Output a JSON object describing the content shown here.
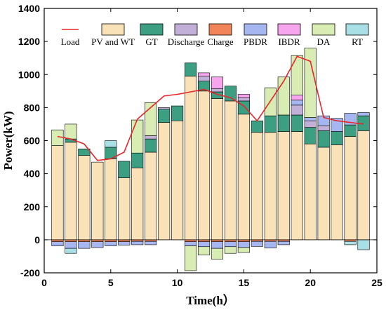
{
  "chart_data": {
    "type": "bar",
    "subtype": "stacked",
    "xlabel": "Time(h）",
    "ylabel": "Power(kW)",
    "xlim": [
      0,
      25
    ],
    "ylim": [
      -200,
      1400
    ],
    "xticks": [
      0,
      5,
      10,
      15,
      20,
      25
    ],
    "yticks": [
      -200,
      0,
      200,
      400,
      600,
      800,
      1000,
      1200,
      1400
    ],
    "x": [
      1,
      2,
      3,
      4,
      5,
      6,
      7,
      8,
      9,
      10,
      11,
      12,
      13,
      14,
      15,
      16,
      17,
      18,
      19,
      20,
      21,
      22,
      23,
      24
    ],
    "legend_position": "top",
    "colors": {
      "pv_wt": "#f9e2b8",
      "gt": "#3c9f82",
      "discharge": "#c3b0d8",
      "charge": "#f2845a",
      "pbdr": "#a5b6f0",
      "ibdr": "#f7a6ee",
      "da": "#d8ecb3",
      "rt": "#a9e0e6",
      "load": "#e8262a"
    },
    "series": [
      {
        "name": "PV and WT",
        "key": "pv_wt",
        "values": [
          570,
          590,
          510,
          470,
          490,
          375,
          435,
          530,
          710,
          720,
          990,
          900,
          855,
          840,
          760,
          650,
          650,
          655,
          655,
          580,
          560,
          575,
          625,
          660
        ]
      },
      {
        "name": "GT",
        "key": "gt",
        "values": [
          0,
          20,
          40,
          0,
          70,
          100,
          90,
          80,
          80,
          90,
          80,
          60,
          40,
          90,
          80,
          70,
          100,
          100,
          100,
          100,
          100,
          80,
          70,
          90
        ]
      },
      {
        "name": "Discharge",
        "key": "discharge",
        "values": [
          0,
          0,
          0,
          0,
          0,
          0,
          0,
          20,
          10,
          0,
          0,
          30,
          20,
          0,
          20,
          0,
          0,
          0,
          60,
          40,
          30,
          0,
          0,
          0
        ]
      },
      {
        "name": "Charge",
        "key": "charge",
        "values": [
          -12,
          -12,
          -12,
          -12,
          -12,
          -12,
          -10,
          -10,
          0,
          0,
          -12,
          -12,
          -12,
          -12,
          -12,
          -10,
          -10,
          -10,
          0,
          0,
          0,
          0,
          -10,
          0
        ]
      },
      {
        "name": "PBDR",
        "key": "pbdr",
        "values": [
          -25,
          -40,
          -40,
          -35,
          -25,
          -20,
          -20,
          -20,
          0,
          0,
          -25,
          -30,
          -40,
          -30,
          -35,
          -30,
          -40,
          -20,
          30,
          20,
          60,
          80,
          70,
          20
        ]
      },
      {
        "name": "IBDR",
        "key": "ibdr",
        "values": [
          0,
          0,
          0,
          0,
          0,
          0,
          0,
          0,
          0,
          0,
          0,
          20,
          70,
          0,
          20,
          0,
          0,
          0,
          30,
          0,
          0,
          0,
          0,
          0
        ]
      },
      {
        "name": "DA",
        "key": "da",
        "values": [
          95,
          90,
          0,
          0,
          0,
          0,
          200,
          200,
          0,
          0,
          -150,
          -50,
          -65,
          -40,
          -30,
          0,
          170,
          230,
          240,
          420,
          0,
          0,
          0,
          0
        ]
      },
      {
        "name": "RT",
        "key": "rt",
        "values": [
          0,
          -30,
          0,
          0,
          40,
          0,
          0,
          0,
          0,
          0,
          0,
          0,
          0,
          0,
          0,
          0,
          0,
          0,
          0,
          0,
          0,
          0,
          -20,
          -60
        ]
      },
      {
        "name": "Load",
        "key": "load",
        "type": "line",
        "values": [
          625,
          610,
          580,
          480,
          490,
          530,
          730,
          800,
          870,
          880,
          895,
          910,
          880,
          860,
          810,
          720,
          840,
          960,
          1110,
          1080,
          740,
          720,
          710,
          700
        ]
      }
    ]
  }
}
